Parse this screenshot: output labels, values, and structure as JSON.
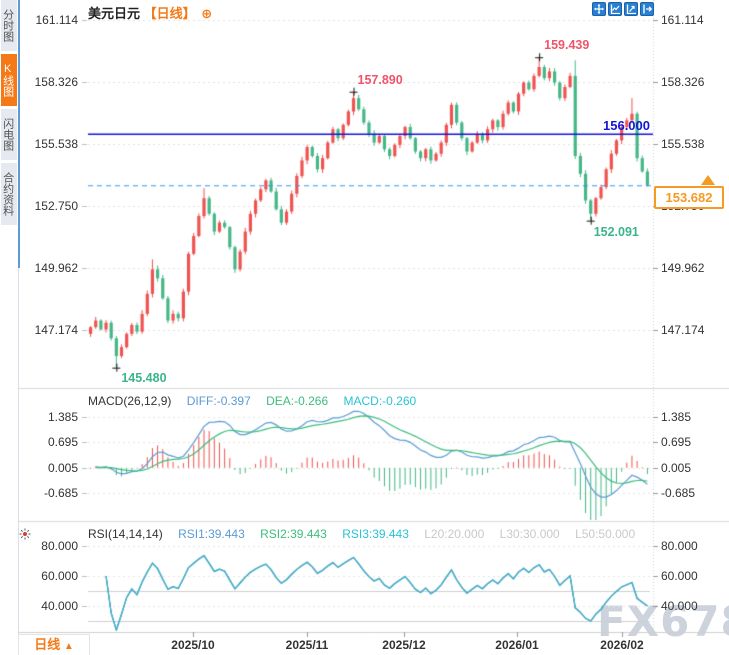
{
  "window": {
    "title": "美元日元",
    "period_tag": "【日线】",
    "add_icon": "⊕"
  },
  "toolbar": {
    "icons": [
      "crosshair-pan",
      "axis-scale",
      "axis-scale-play",
      "exit-restore"
    ]
  },
  "sidebar": {
    "tabs": [
      {
        "label": "分时图",
        "active": false
      },
      {
        "label": "K线图",
        "active": true
      },
      {
        "label": "闪电图",
        "active": false
      },
      {
        "label": "合约资料",
        "active": false
      }
    ]
  },
  "main_chart": {
    "y_axis_labels": [
      "161.114",
      "158.326",
      "155.538",
      "152.750",
      "149.962",
      "147.174"
    ],
    "x_axis_labels": [
      "2025/10",
      "2025/11",
      "2025/12",
      "2026/01",
      "2026/02"
    ],
    "annotations": {
      "high1": "157.890",
      "high2": "159.439",
      "low1": "145.480",
      "low2": "152.091"
    },
    "hline_label": "156.000",
    "price_box": "153.682",
    "colors": {
      "up": "#ef5350",
      "down": "#45b787",
      "hline": "#1414d8",
      "dashed_line": "#2e97f5",
      "price_box": "#f59a23",
      "annotation_high": "#f0546a",
      "annotation_low": "#3cb48c",
      "sidebar_accent": "#f57a17"
    }
  },
  "macd_panel": {
    "title": "MACD(26,12,9)",
    "diff_label": "DIFF:-0.397",
    "dea_label": "DEA:-0.266",
    "macd_label": "MACD:-0.260",
    "y_axis_labels": [
      "1.385",
      "0.695",
      "0.005",
      "-0.685"
    ]
  },
  "rsi_panel": {
    "title": "RSI(14,14,14)",
    "rsi1_label": "RSI1:39.443",
    "rsi2_label": "RSI2:39.443",
    "rsi3_label": "RSI3:39.443",
    "l20_label": "L20:20.000",
    "l30_label": "L30:30.000",
    "l50_label": "L50:50.000",
    "y_axis_labels": [
      "80.000",
      "60.000",
      "40.000"
    ]
  },
  "bottom_bar": {
    "period_label": "日线",
    "arrow": "▲"
  },
  "watermark": "FX678",
  "chart_data": {
    "type": "candlestick",
    "symbol": "美元日元 (USD/JPY)",
    "period": "日线 (daily)",
    "y_ticks": [
      161.114,
      158.326,
      155.538,
      152.75,
      149.962,
      147.174
    ],
    "x_ticks": [
      "2025/10",
      "2025/11",
      "2025/12",
      "2026/01",
      "2026/02"
    ],
    "horizontal_line": 156.0,
    "last_price": 153.682,
    "marked_high_1": 157.89,
    "marked_high_2": 159.439,
    "marked_low_1": 145.48,
    "marked_low_2": 152.091,
    "macd": {
      "params": [
        26,
        12,
        9
      ],
      "diff": -0.397,
      "dea": -0.266,
      "macd": -0.26,
      "y_ticks": [
        1.385,
        0.695,
        0.005,
        -0.685
      ]
    },
    "rsi": {
      "params": [
        14,
        14,
        14
      ],
      "rsi1": 39.443,
      "rsi2": 39.443,
      "rsi3": 39.443,
      "levels": {
        "L20": 20.0,
        "L30": 30.0,
        "L50": 50.0
      },
      "y_ticks": [
        80.0,
        60.0,
        40.0
      ]
    },
    "closes": [
      147.3,
      147.6,
      147.2,
      147.5,
      146.8,
      146.0,
      146.4,
      147.0,
      147.4,
      147.1,
      147.9,
      148.8,
      149.9,
      149.5,
      148.6,
      147.6,
      147.9,
      147.7,
      148.9,
      150.6,
      151.4,
      152.3,
      153.1,
      152.4,
      151.6,
      152.0,
      151.8,
      150.9,
      149.9,
      150.7,
      151.6,
      152.4,
      153.0,
      153.5,
      153.9,
      153.4,
      152.6,
      152.0,
      152.5,
      153.3,
      154.1,
      154.8,
      155.4,
      155.0,
      154.4,
      154.9,
      155.6,
      156.2,
      155.8,
      156.4,
      157.0,
      157.6,
      157.1,
      156.5,
      156.0,
      155.6,
      155.9,
      155.3,
      155.0,
      155.5,
      155.9,
      156.3,
      155.8,
      155.2,
      154.9,
      155.3,
      154.8,
      155.1,
      155.6,
      156.4,
      157.3,
      156.5,
      155.8,
      155.2,
      155.6,
      156.0,
      155.7,
      156.2,
      156.6,
      156.3,
      156.9,
      157.4,
      157.0,
      157.8,
      158.3,
      158.0,
      158.6,
      159.0,
      158.5,
      158.8,
      158.3,
      157.6,
      158.1,
      158.6,
      155.0,
      154.2,
      153.0,
      152.4,
      153.1,
      153.6,
      154.4,
      155.1,
      155.7,
      156.3,
      156.6,
      156.9,
      154.9,
      154.3,
      153.682
    ],
    "wick_overrides": {
      "5": {
        "low": 145.48
      },
      "12": {
        "high": 150.35
      },
      "22": {
        "high": 153.55
      },
      "51": {
        "high": 157.89
      },
      "87": {
        "high": 159.439
      },
      "94": {
        "high": 159.3
      },
      "97": {
        "low": 152.091
      },
      "105": {
        "high": 157.6
      }
    },
    "month_start_indices": [
      20,
      43,
      59,
      81,
      101
    ]
  }
}
